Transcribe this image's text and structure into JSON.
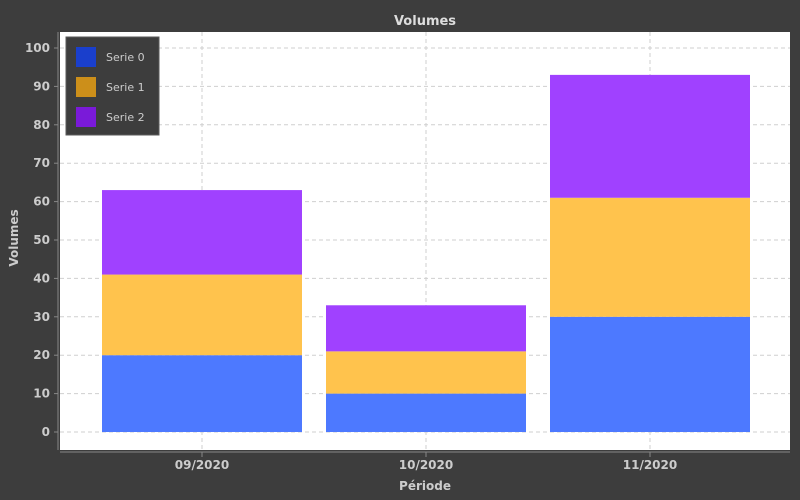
{
  "chart_data": {
    "type": "bar",
    "stacked": true,
    "title": "Volumes",
    "xlabel": "Période",
    "ylabel": "Volumes",
    "categories": [
      "09/2020",
      "10/2020",
      "11/2020"
    ],
    "series": [
      {
        "name": "Serie 0",
        "values": [
          20,
          10,
          30
        ]
      },
      {
        "name": "Serie 1",
        "values": [
          21,
          11,
          31
        ]
      },
      {
        "name": "Serie 2",
        "values": [
          22,
          12,
          32
        ]
      }
    ],
    "ylim": [
      0,
      100
    ],
    "yticks": [
      0,
      10,
      20,
      30,
      40,
      50,
      60,
      70,
      80,
      90,
      100
    ],
    "grid": true,
    "legend_position": "top-left",
    "colors": {
      "background": "#3d3d3d",
      "plot_background": "#ffffff",
      "grid": "#cfcfcf",
      "text": "#cccccc",
      "title": "#dddddd",
      "legend_background": "#3d3d3d",
      "legend_border": "#5a5a5a",
      "legend_text": "#cccccc",
      "series_bars": [
        "#4d79ff",
        "#ffc34d",
        "#a041ff"
      ],
      "series_swatches": [
        "#1a3fcc",
        "#cc8f1a",
        "#7a1ad9"
      ]
    }
  }
}
